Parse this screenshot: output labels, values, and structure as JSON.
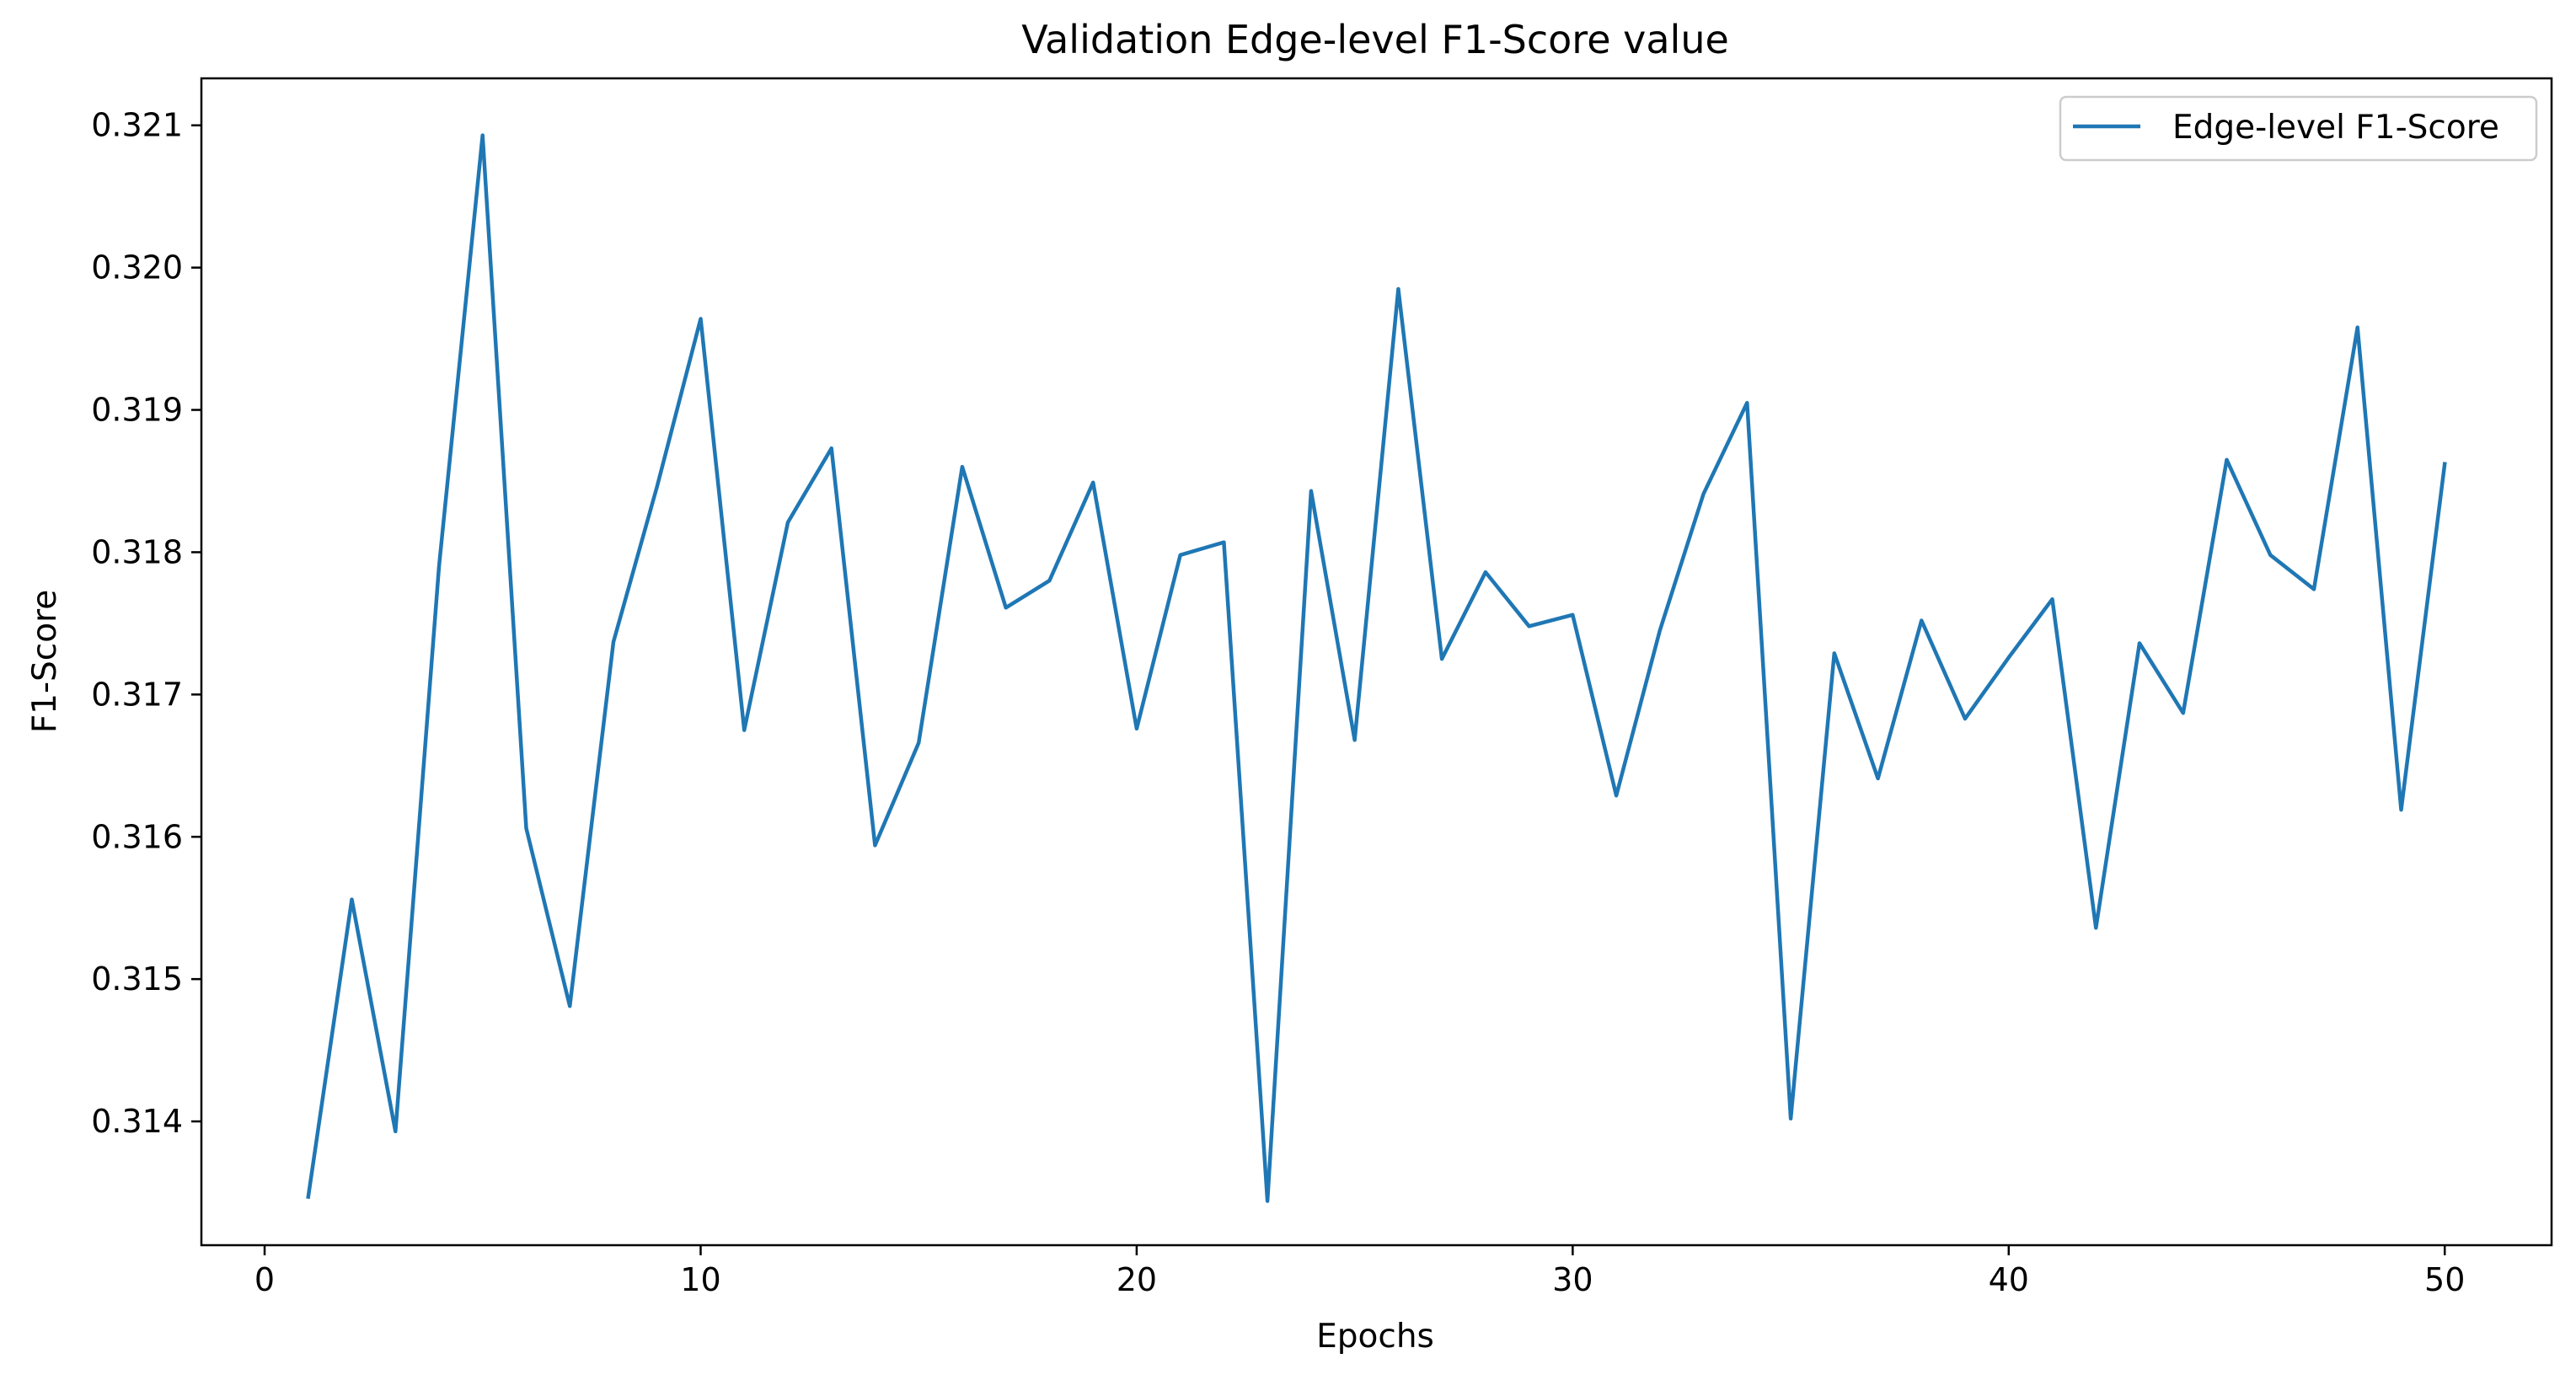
{
  "chart_data": {
    "type": "line",
    "title": "Validation Edge-level F1-Score value",
    "xlabel": "Epochs",
    "ylabel": "F1-Score",
    "xlim": [
      -1.45,
      52.45
    ],
    "ylim": [
      0.31313,
      0.32133
    ],
    "xticks": [
      0,
      10,
      20,
      30,
      40,
      50
    ],
    "xtick_labels": [
      "0",
      "10",
      "20",
      "30",
      "40",
      "50"
    ],
    "yticks": [
      0.314,
      0.315,
      0.316,
      0.317,
      0.318,
      0.319,
      0.32,
      0.321
    ],
    "ytick_labels": [
      "0.314",
      "0.315",
      "0.316",
      "0.317",
      "0.318",
      "0.319",
      "0.320",
      "0.321"
    ],
    "grid": false,
    "legend_position": "top-right",
    "series": [
      {
        "name": "Edge-level F1-Score",
        "color": "#1f77b4",
        "x": [
          1,
          2,
          3,
          4,
          5,
          6,
          7,
          8,
          9,
          10,
          11,
          12,
          13,
          14,
          15,
          16,
          17,
          18,
          19,
          20,
          21,
          22,
          23,
          24,
          25,
          26,
          27,
          28,
          29,
          30,
          31,
          32,
          33,
          34,
          35,
          36,
          37,
          38,
          39,
          40,
          41,
          42,
          43,
          44,
          45,
          46,
          47,
          48,
          49,
          50
        ],
        "values": [
          0.31347,
          0.31556,
          0.31393,
          0.3179,
          0.32093,
          0.31606,
          0.31481,
          0.31737,
          0.31846,
          0.31964,
          0.31675,
          0.31821,
          0.31873,
          0.31594,
          0.31666,
          0.3186,
          0.31761,
          0.3178,
          0.31849,
          0.31676,
          0.31798,
          0.31807,
          0.31344,
          0.31843,
          0.31668,
          0.31985,
          0.31725,
          0.31786,
          0.31748,
          0.31756,
          0.31629,
          0.31745,
          0.31841,
          0.31905,
          0.31402,
          0.31729,
          0.31641,
          0.31752,
          0.31683,
          0.31726,
          0.31767,
          0.31536,
          0.31736,
          0.31687,
          0.31865,
          0.31798,
          0.31774,
          0.31958,
          0.31619,
          0.31862
        ]
      }
    ]
  }
}
